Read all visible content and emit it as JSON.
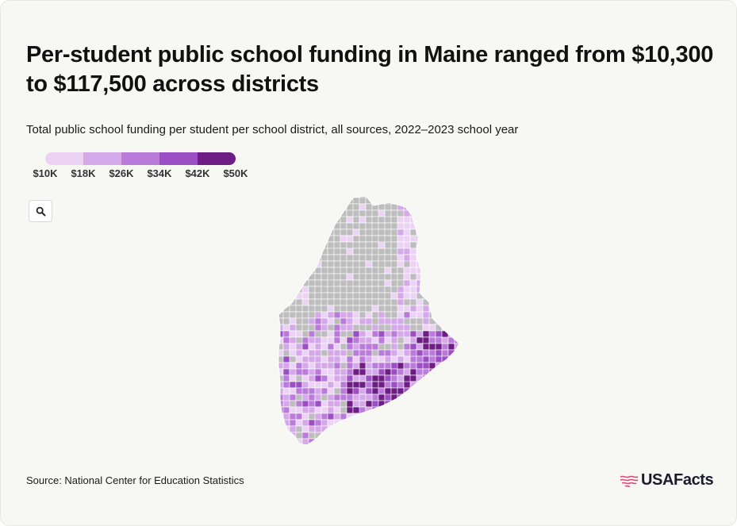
{
  "title": "Per-student public school funding in Maine ranged from $10,300 to $117,500 across districts",
  "subtitle": "Total public school funding per student per school district, all sources, 2022–2023 school year",
  "legend": {
    "ticks": [
      "$10K",
      "$18K",
      "$26K",
      "$34K",
      "$42K",
      "$50K"
    ],
    "colors": [
      "#ecd3f6",
      "#d5a8ea",
      "#bb7bdb",
      "#9c4fc4",
      "#6e1d85"
    ]
  },
  "map": {
    "region": "Maine",
    "no_data_color": "#bdbdbd",
    "border_color": "#ffffff"
  },
  "zoom_button": {
    "icon": "search-icon"
  },
  "source": "Source: National Center for Education Statistics",
  "brand": {
    "name": "USAFacts",
    "icon": "usa-flag-icon",
    "accent": "#e0457b"
  }
}
